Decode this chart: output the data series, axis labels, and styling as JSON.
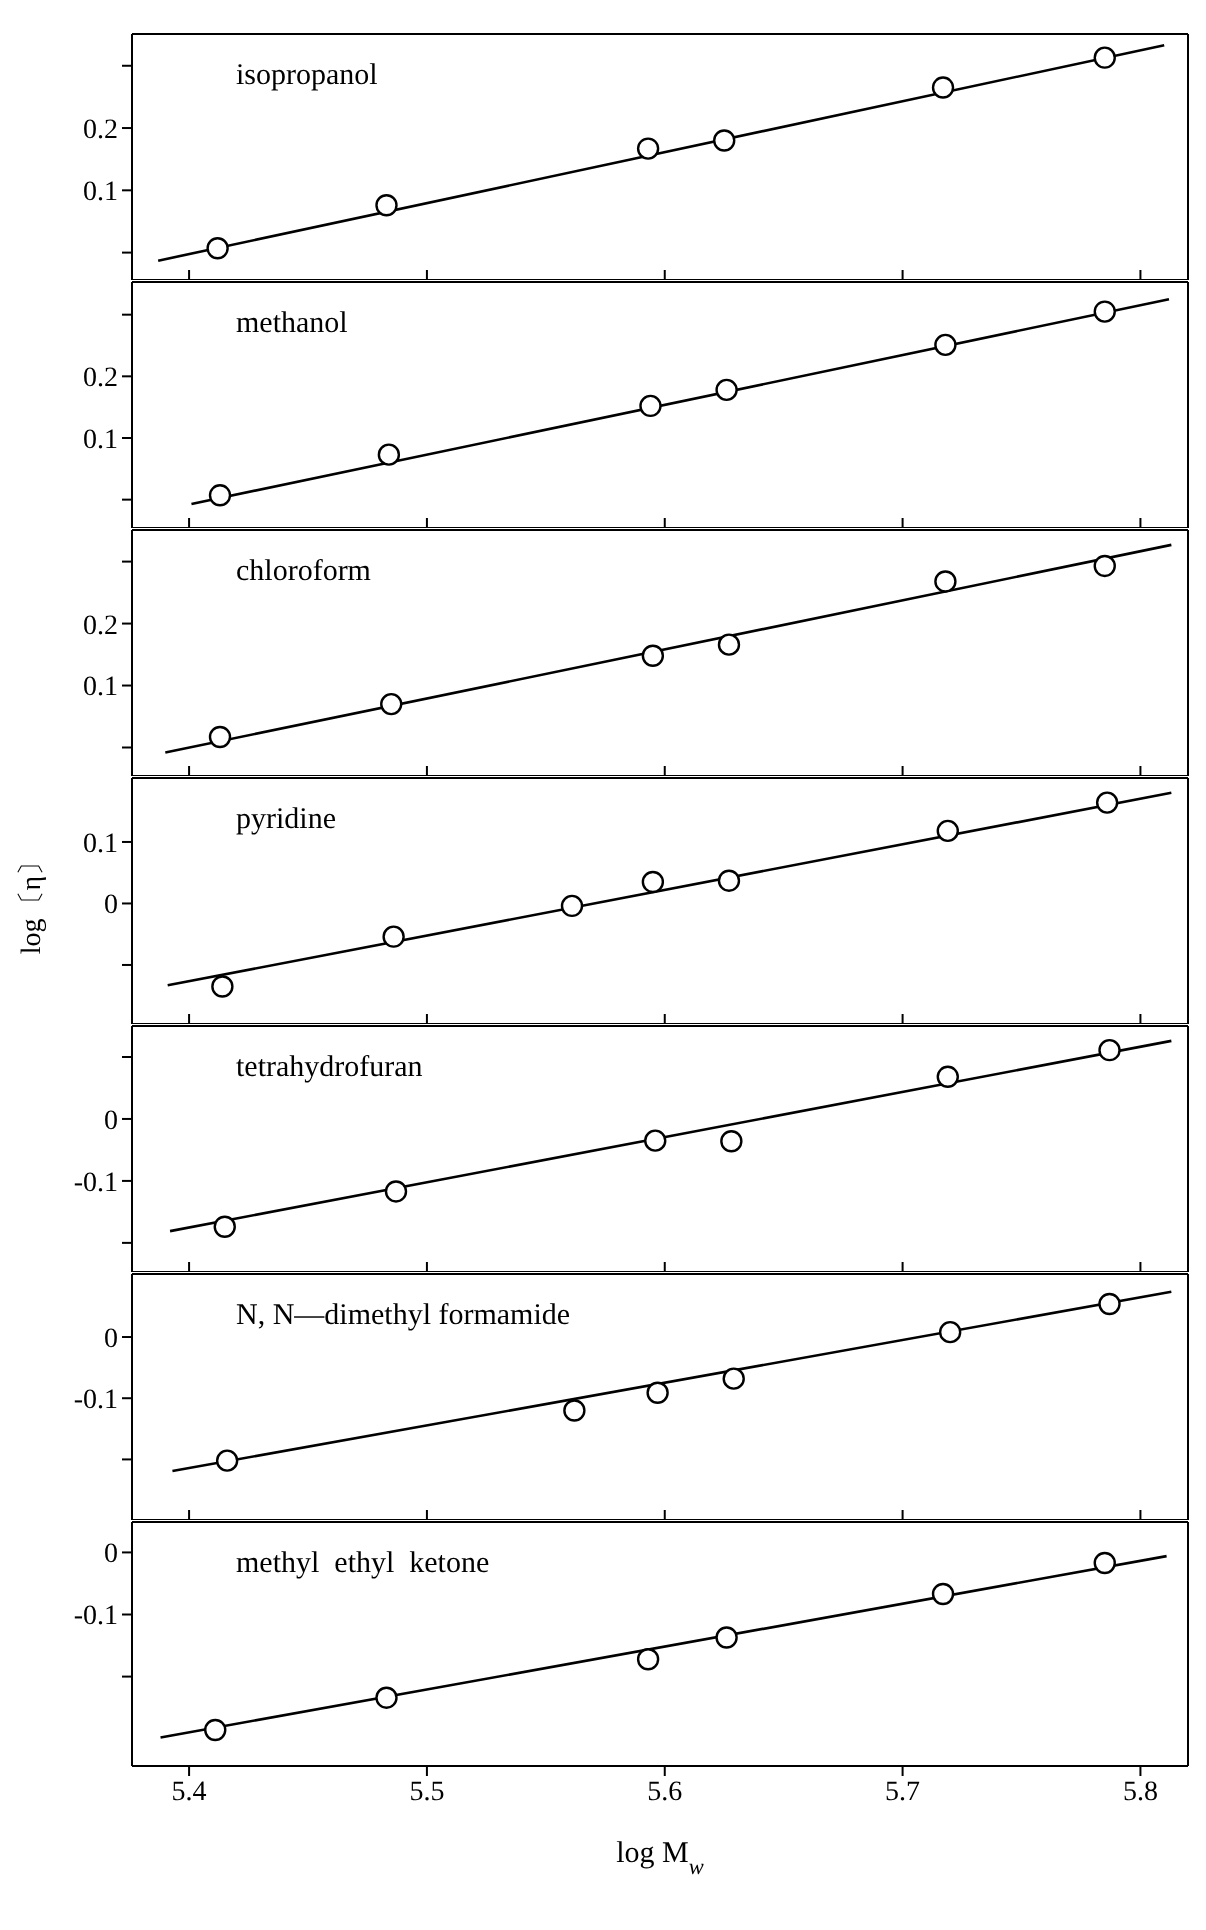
{
  "chart_data": [
    {
      "type": "scatter",
      "annotations": [
        "isopropanol"
      ],
      "xlim": [
        5.376,
        5.82
      ],
      "xticks": [
        5.4,
        5.5,
        5.6,
        5.7,
        5.8
      ],
      "ylim": [
        -0.044,
        0.351
      ],
      "yticks": [
        {
          "value": 0,
          "label": null
        },
        0.1,
        0.2,
        {
          "value": 0.3,
          "label": null
        }
      ],
      "tick_labels": "y",
      "series": [
        {
          "marker": "circle",
          "color": "#000000",
          "x": [
            5.412,
            5.483,
            5.593,
            5.625,
            5.717,
            5.785
          ],
          "values": [
            0.007,
            0.076,
            0.167,
            0.18,
            0.265,
            0.313
          ]
        },
        {
          "type": "line",
          "color": "#000000",
          "x": [
            5.387,
            5.81
          ],
          "values": [
            -0.013,
            0.333
          ]
        }
      ]
    },
    {
      "type": "scatter",
      "annotations": [
        "methanol"
      ],
      "xlim": [
        5.376,
        5.82
      ],
      "xticks": [
        5.4,
        5.5,
        5.6,
        5.7,
        5.8
      ],
      "ylim": [
        -0.046,
        0.353
      ],
      "yticks": [
        {
          "value": 0,
          "label": null
        },
        0.1,
        0.2,
        {
          "value": 0.3,
          "label": null
        }
      ],
      "tick_labels": "y",
      "series": [
        {
          "marker": "circle",
          "color": "#000000",
          "x": [
            5.413,
            5.484,
            5.594,
            5.626,
            5.718,
            5.785
          ],
          "values": [
            0.007,
            0.073,
            0.152,
            0.178,
            0.251,
            0.305
          ]
        },
        {
          "type": "line",
          "color": "#000000",
          "x": [
            5.401,
            5.812
          ],
          "values": [
            -0.007,
            0.325
          ]
        }
      ]
    },
    {
      "type": "scatter",
      "annotations": [
        "chloroform"
      ],
      "xlim": [
        5.376,
        5.82
      ],
      "xticks": [
        5.4,
        5.5,
        5.6,
        5.7,
        5.8
      ],
      "ylim": [
        -0.046,
        0.351
      ],
      "yticks": [
        {
          "value": 0,
          "label": null
        },
        0.1,
        0.2,
        {
          "value": 0.3,
          "label": null
        }
      ],
      "tick_labels": "y",
      "series": [
        {
          "marker": "circle",
          "color": "#000000",
          "x": [
            5.413,
            5.485,
            5.595,
            5.627,
            5.718,
            5.785
          ],
          "values": [
            0.017,
            0.07,
            0.148,
            0.166,
            0.268,
            0.293
          ]
        },
        {
          "type": "line",
          "color": "#000000",
          "x": [
            5.39,
            5.813
          ],
          "values": [
            -0.008,
            0.327
          ]
        }
      ]
    },
    {
      "type": "scatter",
      "annotations": [
        "pyridine"
      ],
      "ylabel": "log〔η〕",
      "xlim": [
        5.376,
        5.82
      ],
      "xticks": [
        5.4,
        5.5,
        5.6,
        5.7,
        5.8
      ],
      "ylim": [
        -0.196,
        0.204
      ],
      "yticks": [
        {
          "value": -0.1,
          "label": null
        },
        0,
        0.1
      ],
      "tick_labels": "y",
      "series": [
        {
          "marker": "circle",
          "color": "#000000",
          "x": [
            5.414,
            5.486,
            5.561,
            5.595,
            5.627,
            5.719,
            5.786
          ],
          "values": [
            -0.135,
            -0.054,
            -0.004,
            0.035,
            0.037,
            0.118,
            0.164
          ]
        },
        {
          "type": "line",
          "color": "#000000",
          "x": [
            5.391,
            5.813
          ],
          "values": [
            -0.133,
            0.18
          ]
        }
      ]
    },
    {
      "type": "scatter",
      "annotations": [
        "tetrahydrofuran"
      ],
      "xlim": [
        5.376,
        5.82
      ],
      "xticks": [
        5.4,
        5.5,
        5.6,
        5.7,
        5.8
      ],
      "ylim": [
        -0.247,
        0.15
      ],
      "yticks": [
        {
          "value": -0.2,
          "label": null
        },
        -0.1,
        0,
        {
          "value": 0.1,
          "label": null
        }
      ],
      "tick_labels": "y",
      "series": [
        {
          "marker": "circle",
          "color": "#000000",
          "x": [
            5.415,
            5.487,
            5.596,
            5.628,
            5.719,
            5.787
          ],
          "values": [
            -0.174,
            -0.117,
            -0.035,
            -0.036,
            0.068,
            0.111
          ]
        },
        {
          "type": "line",
          "color": "#000000",
          "x": [
            5.392,
            5.813
          ],
          "values": [
            -0.181,
            0.126
          ]
        }
      ]
    },
    {
      "type": "scatter",
      "annotations": [
        "N, N—dimethyl formamide"
      ],
      "xlim": [
        5.376,
        5.82
      ],
      "xticks": [
        5.4,
        5.5,
        5.6,
        5.7,
        5.8
      ],
      "ylim": [
        -0.299,
        0.103
      ],
      "yticks": [
        {
          "value": -0.2,
          "label": null
        },
        -0.1,
        0
      ],
      "tick_labels": "y",
      "series": [
        {
          "marker": "circle",
          "color": "#000000",
          "x": [
            5.416,
            5.562,
            5.597,
            5.629,
            5.72,
            5.787
          ],
          "values": [
            -0.202,
            -0.12,
            -0.091,
            -0.068,
            0.008,
            0.054
          ]
        },
        {
          "type": "line",
          "color": "#000000",
          "x": [
            5.393,
            5.813
          ],
          "values": [
            -0.219,
            0.074
          ]
        }
      ]
    },
    {
      "type": "scatter",
      "annotations": [
        "methyl  ethyl  ketone"
      ],
      "xlabel": "log M$_{w}$",
      "xlim": [
        5.376,
        5.82
      ],
      "xticks": [
        5.4,
        5.5,
        5.6,
        5.7,
        5.8
      ],
      "ylim": [
        -0.344,
        0.049
      ],
      "yticks": [
        {
          "value": -0.2,
          "label": null
        },
        -0.1,
        0
      ],
      "series": [
        {
          "marker": "circle",
          "color": "#000000",
          "x": [
            5.411,
            5.483,
            5.593,
            5.626,
            5.717,
            5.785
          ],
          "values": [
            -0.286,
            -0.234,
            -0.172,
            -0.137,
            -0.067,
            -0.017
          ]
        },
        {
          "type": "line",
          "color": "#000000",
          "x": [
            5.388,
            5.811
          ],
          "values": [
            -0.298,
            -0.006
          ]
        }
      ]
    }
  ]
}
